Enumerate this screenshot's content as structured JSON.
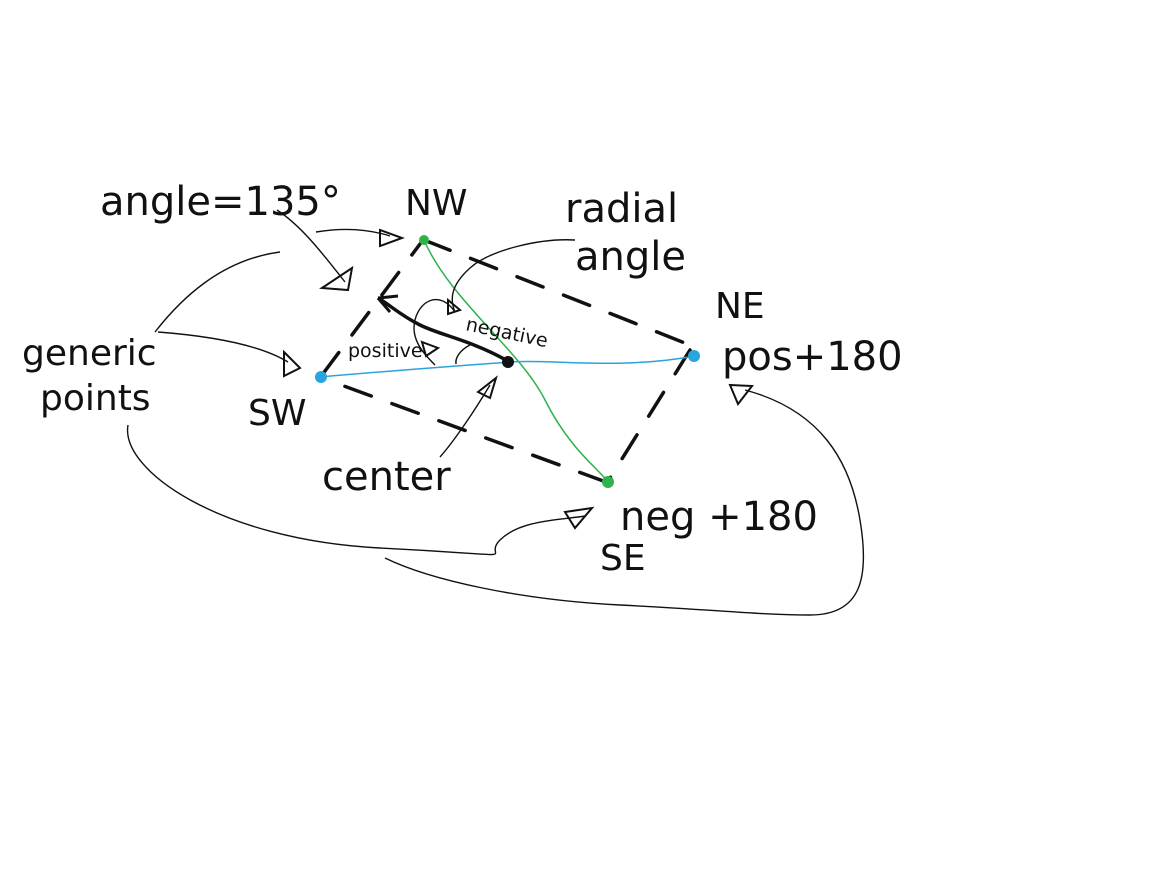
{
  "labels": {
    "angle": "angle=135°",
    "radial_line1": "radial",
    "radial_line2": "angle",
    "generic_line1": "generic",
    "generic_line2": "points",
    "center": "center",
    "positive": "positive",
    "negative": "negative",
    "pos180": "pos+180",
    "neg180": "neg +180"
  },
  "compass": {
    "nw": "NW",
    "ne": "NE",
    "sw": "SW",
    "se": "SE"
  },
  "colors": {
    "nw": "#e0302a",
    "ne": "#9b59b6",
    "sw": "#f08c3a",
    "se": "#c8c8e8",
    "green_line": "#2db34a",
    "blue_line": "#2aa4dc",
    "ink": "#111111"
  }
}
